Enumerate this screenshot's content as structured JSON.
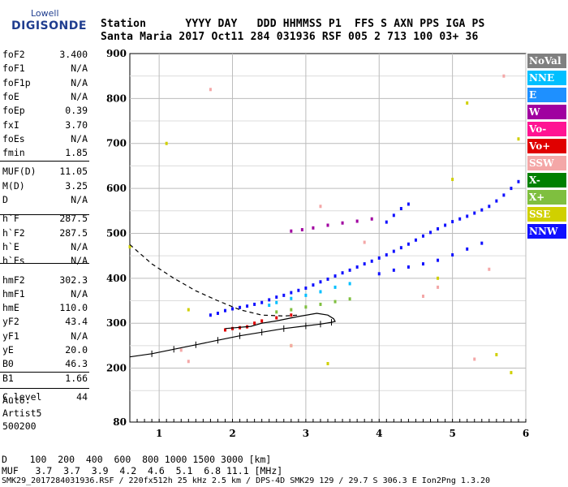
{
  "logo": {
    "line1": "Lowell",
    "line2": "DIGISONDE"
  },
  "header": {
    "row1": "Station      YYYY DAY   DDD HHMMSS P1  FFS S AXN PPS IGA PS",
    "row2": "Santa Maria 2017 Oct11 284 031936 RSF 005 2 713 100 03+ 36"
  },
  "params": [
    {
      "name": "foF2",
      "value": "3.400"
    },
    {
      "name": "foF1",
      "value": "N/A"
    },
    {
      "name": "foF1p",
      "value": "N/A"
    },
    {
      "name": "foE",
      "value": "N/A"
    },
    {
      "name": "foEp",
      "value": "0.39"
    },
    {
      "name": "fxI",
      "value": "3.70"
    },
    {
      "name": "foEs",
      "value": "N/A"
    },
    {
      "name": "fmin",
      "value": "1.85"
    },
    {
      "name": "MUF(D)",
      "value": "11.05"
    },
    {
      "name": "M(D)",
      "value": "3.25"
    },
    {
      "name": "D",
      "value": "N/A"
    },
    {
      "name": "h`F",
      "value": "287.5"
    },
    {
      "name": "h`F2",
      "value": "287.5"
    },
    {
      "name": "h`E",
      "value": "N/A"
    },
    {
      "name": "h`Es",
      "value": "N/A"
    },
    {
      "name": "hmF2",
      "value": "302.3"
    },
    {
      "name": "hmF1",
      "value": "N/A"
    },
    {
      "name": "hmE",
      "value": "110.0"
    },
    {
      "name": "yF2",
      "value": "43.4"
    },
    {
      "name": "yF1",
      "value": "N/A"
    },
    {
      "name": "yE",
      "value": "20.0"
    },
    {
      "name": "B0",
      "value": "46.3"
    },
    {
      "name": "B1",
      "value": "1.66"
    },
    {
      "name": "C-level",
      "value": "44"
    }
  ],
  "auto": {
    "line1": "Auto:",
    "line2": "Artist5",
    "line3": "500200"
  },
  "footer": {
    "d_row": "D    100  200  400  600  800 1000 1500 3000 [km]",
    "muf_row": "MUF   3.7  3.7  3.9  4.2  4.6  5.1  6.8 11.1 [MHz]",
    "info": "SMK29_2017284031936.RSF / 220fx512h 25 kHz 2.5 km / DPS-4D SMK29 129 / 29.7 S 306.3 E Ion2Png 1.3.20"
  },
  "legend": [
    {
      "label": "NoVal",
      "color": "#808080"
    },
    {
      "label": "NNE",
      "color": "#00bfff"
    },
    {
      "label": "E",
      "color": "#1e90ff"
    },
    {
      "label": "W",
      "color": "#a000a0"
    },
    {
      "label": "Vo-",
      "color": "#ff1493"
    },
    {
      "label": "Vo+",
      "color": "#e00000"
    },
    {
      "label": "SSW",
      "color": "#f4a7a7"
    },
    {
      "label": "X-",
      "color": "#008000"
    },
    {
      "label": "X+",
      "color": "#7fbf3f"
    },
    {
      "label": "SSE",
      "color": "#d0d000"
    },
    {
      "label": "NNW",
      "color": "#1010ff"
    }
  ],
  "chart_data": {
    "type": "scatter",
    "title": "",
    "xlabel": "",
    "ylabel": "",
    "xlim": [
      0.6,
      6.0
    ],
    "ylim": [
      80,
      900
    ],
    "x_ticks": [
      1,
      2,
      3,
      4,
      5,
      6
    ],
    "y_ticks": [
      80,
      200,
      300,
      400,
      500,
      600,
      700,
      800,
      900
    ],
    "grid": true,
    "legend_placement": "right",
    "series": [
      {
        "name": "W",
        "color": "#a000a0",
        "points": [
          [
            2.8,
            505
          ],
          [
            2.95,
            508
          ],
          [
            3.1,
            512
          ],
          [
            3.3,
            518
          ],
          [
            3.5,
            523
          ],
          [
            3.7,
            527
          ],
          [
            3.9,
            532
          ]
        ]
      },
      {
        "name": "NNW",
        "color": "#1010ff",
        "points": [
          [
            1.7,
            318
          ],
          [
            1.8,
            322
          ],
          [
            1.9,
            328
          ],
          [
            2.0,
            332
          ],
          [
            2.1,
            335
          ],
          [
            2.2,
            338
          ],
          [
            2.3,
            342
          ],
          [
            2.4,
            346
          ],
          [
            2.5,
            352
          ],
          [
            2.6,
            358
          ],
          [
            2.7,
            362
          ],
          [
            2.8,
            368
          ],
          [
            2.9,
            373
          ],
          [
            3.0,
            378
          ],
          [
            3.1,
            385
          ],
          [
            3.2,
            392
          ],
          [
            3.3,
            398
          ],
          [
            3.4,
            405
          ],
          [
            3.5,
            412
          ],
          [
            3.6,
            418
          ],
          [
            3.7,
            425
          ],
          [
            3.8,
            432
          ],
          [
            3.9,
            438
          ],
          [
            4.0,
            445
          ],
          [
            4.1,
            452
          ],
          [
            4.2,
            460
          ],
          [
            4.3,
            468
          ],
          [
            4.4,
            476
          ],
          [
            4.5,
            485
          ],
          [
            4.6,
            494
          ],
          [
            4.7,
            502
          ],
          [
            4.8,
            510
          ],
          [
            4.9,
            518
          ],
          [
            5.0,
            526
          ],
          [
            5.1,
            532
          ],
          [
            5.2,
            538
          ],
          [
            5.3,
            545
          ],
          [
            5.4,
            552
          ],
          [
            5.5,
            560
          ],
          [
            5.6,
            572
          ],
          [
            5.7,
            585
          ],
          [
            5.8,
            600
          ],
          [
            5.9,
            615
          ],
          [
            4.0,
            410
          ],
          [
            4.2,
            418
          ],
          [
            4.4,
            425
          ],
          [
            4.6,
            432
          ],
          [
            4.8,
            440
          ],
          [
            5.0,
            452
          ],
          [
            5.2,
            465
          ],
          [
            5.4,
            478
          ],
          [
            4.1,
            525
          ],
          [
            4.2,
            540
          ],
          [
            4.3,
            555
          ],
          [
            4.4,
            565
          ]
        ]
      },
      {
        "name": "NNE",
        "color": "#00bfff",
        "points": [
          [
            2.5,
            340
          ],
          [
            2.6,
            346
          ],
          [
            2.8,
            355
          ],
          [
            3.0,
            362
          ],
          [
            3.2,
            370
          ],
          [
            3.4,
            380
          ],
          [
            3.6,
            388
          ]
        ]
      },
      {
        "name": "Vo+",
        "color": "#e00000",
        "points": [
          [
            1.9,
            285
          ],
          [
            2.0,
            288
          ],
          [
            2.1,
            290
          ],
          [
            2.2,
            292
          ],
          [
            2.3,
            300
          ],
          [
            2.4,
            305
          ],
          [
            2.6,
            312
          ],
          [
            2.8,
            318
          ]
        ]
      },
      {
        "name": "X+",
        "color": "#7fbf3f",
        "points": [
          [
            2.6,
            325
          ],
          [
            2.8,
            330
          ],
          [
            3.0,
            336
          ],
          [
            3.2,
            342
          ],
          [
            3.4,
            348
          ],
          [
            3.6,
            354
          ]
        ]
      },
      {
        "name": "SSE",
        "color": "#d0d000",
        "points": [
          [
            0.6,
            470
          ],
          [
            1.1,
            700
          ],
          [
            1.4,
            330
          ],
          [
            2.8,
            250
          ],
          [
            3.3,
            210
          ],
          [
            4.8,
            400
          ],
          [
            5.0,
            620
          ],
          [
            5.2,
            790
          ],
          [
            5.6,
            230
          ],
          [
            5.8,
            190
          ],
          [
            5.9,
            710
          ]
        ]
      },
      {
        "name": "SSW",
        "color": "#f4a7a7",
        "points": [
          [
            1.3,
            240
          ],
          [
            1.4,
            215
          ],
          [
            1.7,
            820
          ],
          [
            2.8,
            250
          ],
          [
            3.2,
            560
          ],
          [
            3.8,
            480
          ],
          [
            4.6,
            360
          ],
          [
            4.8,
            380
          ],
          [
            5.3,
            220
          ],
          [
            5.5,
            420
          ],
          [
            5.7,
            850
          ]
        ]
      }
    ],
    "curves": [
      {
        "name": "true-height profile",
        "style": "solid",
        "points": [
          [
            0.6,
            225
          ],
          [
            0.9,
            232
          ],
          [
            1.2,
            242
          ],
          [
            1.5,
            252
          ],
          [
            1.8,
            262
          ],
          [
            2.1,
            272
          ],
          [
            2.4,
            280
          ],
          [
            2.7,
            288
          ],
          [
            3.0,
            294
          ],
          [
            3.2,
            298
          ],
          [
            3.35,
            302
          ],
          [
            3.4,
            304
          ],
          [
            3.38,
            310
          ],
          [
            3.3,
            318
          ],
          [
            3.15,
            322
          ],
          [
            2.9,
            315
          ],
          [
            2.6,
            305
          ],
          [
            2.4,
            300
          ],
          [
            2.25,
            293
          ],
          [
            1.9,
            288
          ]
        ]
      },
      {
        "name": "model profile",
        "style": "dashed",
        "points": [
          [
            0.6,
            475
          ],
          [
            0.9,
            432
          ],
          [
            1.2,
            400
          ],
          [
            1.5,
            372
          ],
          [
            1.8,
            350
          ],
          [
            2.1,
            330
          ],
          [
            2.4,
            318
          ],
          [
            2.7,
            316
          ],
          [
            2.9,
            318
          ]
        ]
      }
    ]
  }
}
